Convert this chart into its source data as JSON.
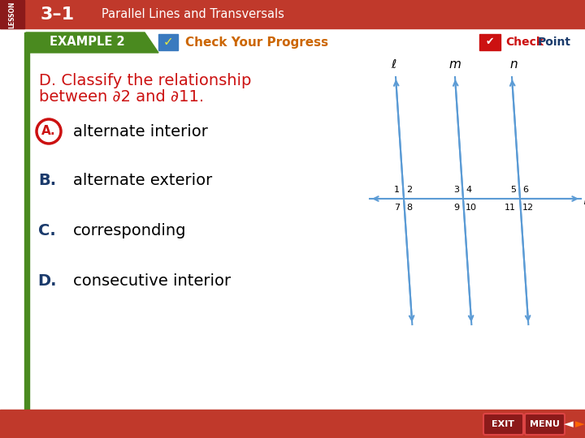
{
  "bg_color": "#ffffff",
  "header_bg": "#c0392b",
  "header_text": "3–1",
  "header_subtitle": "Parallel Lines and Transversals",
  "example_bg": "#5a9e2f",
  "example_text": "EXAMPLE 2",
  "check_text": "Check Your Progress",
  "checkpoint_text": "CheckPoint",
  "question_line1": "D. Classify the relationship",
  "question_line2": "between ∂2 and ∂11.",
  "answer_A": "alternate interior",
  "answer_B": "alternate exterior",
  "answer_C": "corresponding",
  "answer_D": "consecutive interior",
  "answer_color": "#1a3a6b",
  "selected_circle_color": "#cc1111",
  "line_color": "#5b9bd5",
  "bottom_bar_color": "#c0392b",
  "left_bar_color": "#3a7a3a",
  "question_color": "#cc1111"
}
